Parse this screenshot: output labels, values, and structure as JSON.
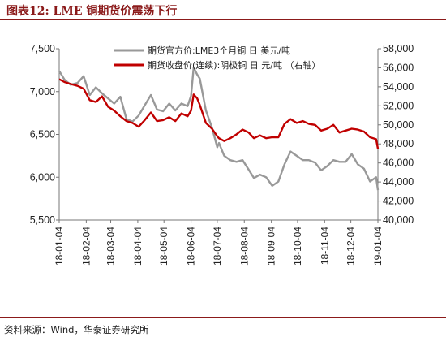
{
  "figure": {
    "title": "图表12:   LME 铜期货价震荡下行",
    "source": "资料来源：Wind，华泰证券研究所"
  },
  "chart_data": {
    "type": "line",
    "title": "LME 铜期货价震荡下行",
    "x_ticks": [
      "18-01-04",
      "18-02-04",
      "18-03-04",
      "18-04-04",
      "18-05-04",
      "18-06-04",
      "18-07-04",
      "18-08-04",
      "18-09-04",
      "18-10-04",
      "18-11-04",
      "18-12-04",
      "19-01-04"
    ],
    "y_left": {
      "ylim": [
        5500,
        7500
      ],
      "ticks": [
        "5,500",
        "6,000",
        "6,500",
        "7,000",
        "7,500"
      ]
    },
    "y_right": {
      "ylim": [
        40000,
        58000
      ],
      "ticks": [
        "40,000",
        "42,000",
        "44,000",
        "46,000",
        "48,000",
        "50,000",
        "52,000",
        "54,000",
        "56,000",
        "58,000"
      ]
    },
    "legend_position": "top",
    "grid": false,
    "series": [
      {
        "name": "期货官方价:LME3个月铜 日 美元/吨",
        "axis": "left",
        "color": "#999999",
        "x": [
          "2018-01-04",
          "2018-01-10",
          "2018-01-17",
          "2018-01-25",
          "2018-02-01",
          "2018-02-08",
          "2018-02-15",
          "2018-02-22",
          "2018-03-01",
          "2018-03-08",
          "2018-03-15",
          "2018-03-22",
          "2018-03-29",
          "2018-04-05",
          "2018-04-12",
          "2018-04-19",
          "2018-04-26",
          "2018-05-03",
          "2018-05-10",
          "2018-05-17",
          "2018-05-24",
          "2018-05-31",
          "2018-06-04",
          "2018-06-07",
          "2018-06-11",
          "2018-06-14",
          "2018-06-21",
          "2018-06-28",
          "2018-07-04",
          "2018-07-06",
          "2018-07-12",
          "2018-07-19",
          "2018-07-26",
          "2018-08-02",
          "2018-08-09",
          "2018-08-15",
          "2018-08-22",
          "2018-08-29",
          "2018-09-05",
          "2018-09-12",
          "2018-09-19",
          "2018-09-26",
          "2018-10-03",
          "2018-10-10",
          "2018-10-17",
          "2018-10-24",
          "2018-10-31",
          "2018-11-07",
          "2018-11-14",
          "2018-11-21",
          "2018-11-28",
          "2018-12-05",
          "2018-12-12",
          "2018-12-19",
          "2018-12-26",
          "2019-01-02",
          "2019-01-04"
        ],
        "values": [
          7240,
          7140,
          7080,
          7100,
          7180,
          6960,
          7050,
          6980,
          6920,
          6860,
          6940,
          6680,
          6650,
          6720,
          6840,
          6960,
          6790,
          6770,
          6860,
          6780,
          6860,
          6830,
          6950,
          7280,
          7200,
          7150,
          6780,
          6580,
          6350,
          6400,
          6250,
          6200,
          6180,
          6200,
          6090,
          5990,
          6030,
          6000,
          5900,
          5950,
          6150,
          6300,
          6250,
          6200,
          6200,
          6170,
          6080,
          6130,
          6200,
          6180,
          6180,
          6270,
          6150,
          6100,
          5950,
          6000,
          5850
        ]
      },
      {
        "name": "期货收盘价(连续):阴极铜 日 元/吨 （右轴）",
        "axis": "right",
        "color": "#c00000",
        "x": [
          "2018-01-04",
          "2018-01-10",
          "2018-01-17",
          "2018-01-25",
          "2018-02-01",
          "2018-02-08",
          "2018-02-15",
          "2018-02-22",
          "2018-03-01",
          "2018-03-08",
          "2018-03-15",
          "2018-03-22",
          "2018-03-29",
          "2018-04-05",
          "2018-04-12",
          "2018-04-19",
          "2018-04-26",
          "2018-05-03",
          "2018-05-10",
          "2018-05-17",
          "2018-05-24",
          "2018-05-31",
          "2018-06-04",
          "2018-06-07",
          "2018-06-11",
          "2018-06-14",
          "2018-06-21",
          "2018-06-28",
          "2018-07-04",
          "2018-07-06",
          "2018-07-12",
          "2018-07-19",
          "2018-07-26",
          "2018-08-02",
          "2018-08-09",
          "2018-08-15",
          "2018-08-22",
          "2018-08-29",
          "2018-09-05",
          "2018-09-12",
          "2018-09-19",
          "2018-09-26",
          "2018-10-03",
          "2018-10-10",
          "2018-10-17",
          "2018-10-24",
          "2018-10-31",
          "2018-11-07",
          "2018-11-14",
          "2018-11-21",
          "2018-11-28",
          "2018-12-05",
          "2018-12-12",
          "2018-12-19",
          "2018-12-26",
          "2019-01-02",
          "2019-01-04"
        ],
        "values": [
          54800,
          54500,
          54300,
          54100,
          53800,
          52600,
          52400,
          53000,
          51900,
          51500,
          50900,
          50400,
          50200,
          49800,
          50500,
          51300,
          50400,
          50500,
          50800,
          50400,
          51200,
          50900,
          51500,
          53200,
          52800,
          52100,
          50200,
          49600,
          48800,
          48600,
          48300,
          48600,
          49000,
          49500,
          49200,
          48600,
          48900,
          48600,
          48700,
          48700,
          50100,
          50600,
          50200,
          50400,
          50100,
          50000,
          49400,
          49600,
          50000,
          49200,
          49400,
          49600,
          49500,
          49300,
          48700,
          48500,
          47500
        ]
      }
    ]
  }
}
